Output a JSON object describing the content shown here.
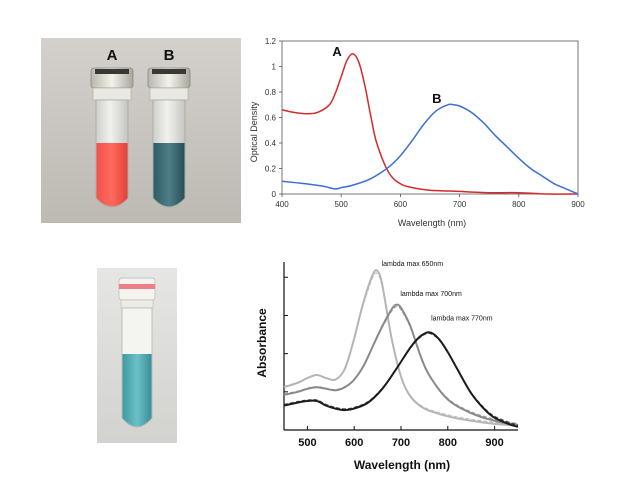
{
  "photos": {
    "vial_pair": {
      "label_a": "A",
      "label_b": "B"
    }
  },
  "chart_data": [
    {
      "type": "line",
      "title": "",
      "xlabel": "Wavelength (nm)",
      "ylabel": "Optical Density",
      "xlim": [
        400,
        900
      ],
      "ylim": [
        0,
        1.2
      ],
      "xticks": [
        "400",
        "500",
        "600",
        "700",
        "800",
        "900"
      ],
      "yticks": [
        "0",
        "0.2",
        "0.4",
        "0.6",
        "0.8",
        "1",
        "1.2"
      ],
      "grid": false,
      "series": [
        {
          "name": "A",
          "color": "#d42a2a",
          "x": [
            400,
            420,
            440,
            460,
            480,
            490,
            500,
            510,
            520,
            530,
            540,
            550,
            560,
            580,
            600,
            620,
            650,
            700,
            750,
            800,
            850,
            900
          ],
          "y": [
            0.66,
            0.64,
            0.63,
            0.64,
            0.7,
            0.79,
            0.92,
            1.05,
            1.1,
            1.03,
            0.85,
            0.61,
            0.4,
            0.17,
            0.08,
            0.05,
            0.03,
            0.02,
            0.01,
            0.01,
            0.0,
            0.0
          ]
        },
        {
          "name": "B",
          "color": "#3b6fd6",
          "x": [
            400,
            440,
            470,
            490,
            500,
            520,
            550,
            580,
            600,
            620,
            640,
            660,
            680,
            690,
            700,
            720,
            740,
            760,
            780,
            800,
            820,
            840,
            860,
            880,
            900
          ],
          "y": [
            0.1,
            0.08,
            0.06,
            0.04,
            0.05,
            0.07,
            0.12,
            0.21,
            0.3,
            0.42,
            0.55,
            0.65,
            0.7,
            0.7,
            0.69,
            0.64,
            0.56,
            0.46,
            0.37,
            0.28,
            0.2,
            0.14,
            0.08,
            0.04,
            0.0
          ]
        }
      ]
    },
    {
      "type": "line",
      "title": "",
      "xlabel": "Wavelength (nm)",
      "ylabel": "Absorbance",
      "xlim": [
        450,
        950
      ],
      "ylim": [
        0,
        1.1
      ],
      "xticks": [
        "500",
        "600",
        "700",
        "800",
        "900"
      ],
      "grid": false,
      "series": [
        {
          "name": "lambda max 650nm",
          "color": "#b5b5b5",
          "x": [
            450,
            480,
            500,
            520,
            540,
            560,
            580,
            600,
            620,
            640,
            650,
            660,
            680,
            700,
            720,
            750,
            800,
            850,
            900,
            950
          ],
          "y": [
            0.28,
            0.31,
            0.34,
            0.36,
            0.34,
            0.33,
            0.4,
            0.6,
            0.84,
            1.02,
            1.04,
            0.95,
            0.6,
            0.35,
            0.22,
            0.14,
            0.09,
            0.06,
            0.04,
            0.03
          ]
        },
        {
          "name": "lambda max 700nm",
          "color": "#8a8a8a",
          "x": [
            450,
            480,
            500,
            520,
            540,
            560,
            580,
            600,
            620,
            640,
            660,
            680,
            690,
            700,
            720,
            740,
            760,
            800,
            850,
            900,
            950
          ],
          "y": [
            0.23,
            0.25,
            0.27,
            0.28,
            0.27,
            0.26,
            0.28,
            0.33,
            0.42,
            0.55,
            0.68,
            0.79,
            0.82,
            0.8,
            0.68,
            0.5,
            0.36,
            0.2,
            0.11,
            0.06,
            0.03
          ]
        },
        {
          "name": "lambda max 770nm",
          "color": "#1c1c1c",
          "x": [
            450,
            480,
            500,
            520,
            540,
            560,
            580,
            600,
            630,
            660,
            690,
            720,
            740,
            760,
            780,
            800,
            820,
            850,
            880,
            900,
            930,
            950
          ],
          "y": [
            0.16,
            0.18,
            0.19,
            0.19,
            0.16,
            0.14,
            0.13,
            0.14,
            0.18,
            0.27,
            0.4,
            0.54,
            0.61,
            0.64,
            0.6,
            0.51,
            0.4,
            0.24,
            0.13,
            0.08,
            0.04,
            0.02
          ]
        }
      ]
    }
  ]
}
